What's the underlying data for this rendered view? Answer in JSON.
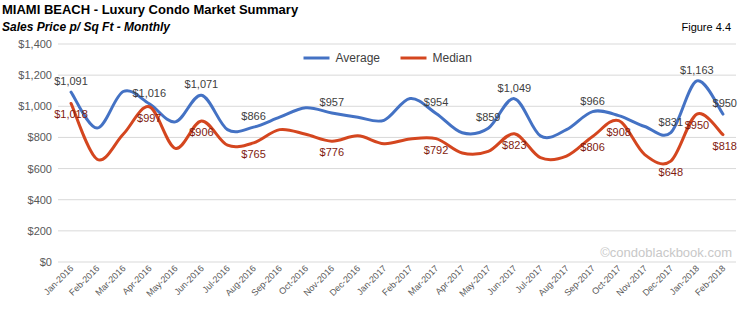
{
  "chart_data": {
    "type": "line",
    "title": "MIAMI BEACH - Luxury Condo Market Summary",
    "subtitle": "Sales Price  p/ Sq Ft - Monthly",
    "annotations": [
      "Figure 4.4",
      "©condoblackbook.com"
    ],
    "categories": [
      "Jan-2016",
      "Feb-2016",
      "Mar-2016",
      "Apr-2016",
      "May-2016",
      "Jun-2016",
      "Jul-2016",
      "Aug-2016",
      "Sep-2016",
      "Oct-2016",
      "Nov-2016",
      "Dec-2016",
      "Jan-2017",
      "Feb-2017",
      "Mar-2017",
      "Apr-2017",
      "May-2017",
      "Jun-2017",
      "Jul-2017",
      "Aug-2017",
      "Sep-2017",
      "Oct-2017",
      "Nov-2017",
      "Dec-2017",
      "Jan-2018",
      "Feb-2018"
    ],
    "series": [
      {
        "name": "Average",
        "color": "#4472c4",
        "values": [
          1091,
          860,
          1095,
          1016,
          900,
          1071,
          850,
          866,
          930,
          990,
          957,
          930,
          910,
          1050,
          954,
          830,
          859,
          1049,
          810,
          850,
          966,
          940,
          870,
          831,
          1163,
          950
        ],
        "value_labels": [
          "$1,091",
          null,
          null,
          "$1,016",
          null,
          "$1,071",
          null,
          "$866",
          null,
          null,
          "$957",
          null,
          null,
          null,
          "$954",
          null,
          "$859",
          "$1,049",
          null,
          null,
          "$966",
          null,
          null,
          "$831",
          "$1,163",
          "$950"
        ]
      },
      {
        "name": "Median",
        "color": "#d4461f",
        "values": [
          1018,
          660,
          820,
          997,
          730,
          906,
          750,
          765,
          850,
          820,
          776,
          810,
          760,
          790,
          792,
          700,
          710,
          823,
          670,
          680,
          806,
          908,
          690,
          648,
          950,
          818
        ],
        "value_labels": [
          "$1,018",
          null,
          null,
          "$997",
          null,
          "$906",
          null,
          "$765",
          null,
          null,
          "$776",
          null,
          null,
          null,
          "$792",
          null,
          null,
          "$823",
          null,
          null,
          "$806",
          "$908",
          null,
          "$648",
          "$950",
          "$818"
        ]
      }
    ],
    "ylim": [
      0,
      1400
    ],
    "yticks": [
      {
        "value": 0,
        "label": "$0"
      },
      {
        "value": 200,
        "label": "$200"
      },
      {
        "value": 400,
        "label": "$400"
      },
      {
        "value": 600,
        "label": "$600"
      },
      {
        "value": 800,
        "label": "$800"
      },
      {
        "value": 1000,
        "label": "$1,000"
      },
      {
        "value": 1200,
        "label": "$1,200"
      },
      {
        "value": 1400,
        "label": "$1,400"
      }
    ],
    "grid": true,
    "legend": "top",
    "data_labels": true
  }
}
